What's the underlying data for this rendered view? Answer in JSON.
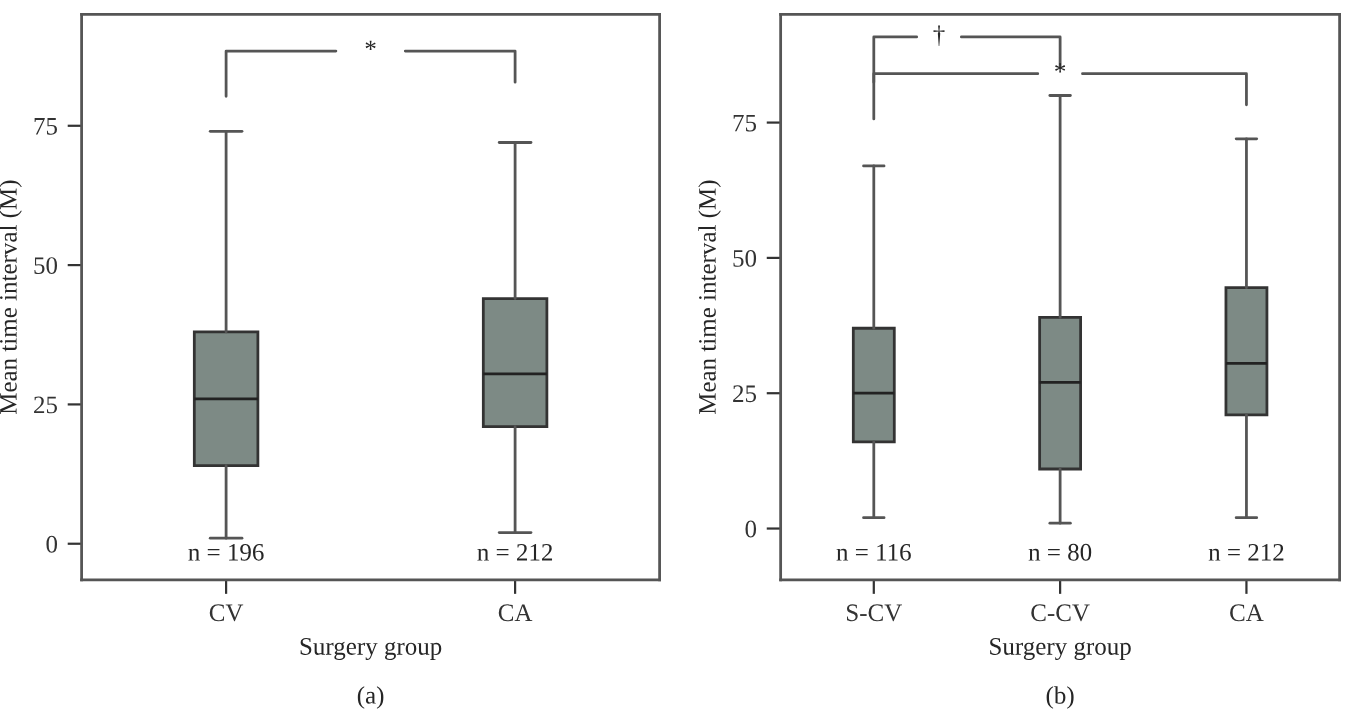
{
  "chart_data": [
    {
      "type": "box",
      "xlabel": "Surgery group",
      "ylabel": "Mean time interval (M)",
      "categories": [
        "CV",
        "CA"
      ],
      "color": "#7d8a85",
      "boxes": [
        {
          "low": 1,
          "q1": 14,
          "median": 26,
          "q3": 38,
          "high": 74
        },
        {
          "low": 2,
          "q1": 21,
          "median": 30.5,
          "q3": 44,
          "high": 72
        }
      ],
      "ylim": [
        -6.5,
        95
      ],
      "yticks": [
        0,
        25,
        50,
        75
      ],
      "grid": false,
      "annotations": [
        "n = 196",
        "n = 212",
        "*",
        "(a)"
      ]
    },
    {
      "type": "box",
      "xlabel": "Surgery group",
      "ylabel": "Mean time interval (M)",
      "categories": [
        "S-CV",
        "C-CV",
        "CA"
      ],
      "color": "#7d8a85",
      "boxes": [
        {
          "low": 2,
          "q1": 16,
          "median": 25,
          "q3": 37,
          "high": 67
        },
        {
          "low": 1,
          "q1": 11,
          "median": 27,
          "q3": 39,
          "high": 80
        },
        {
          "low": 2,
          "q1": 21,
          "median": 30.5,
          "q3": 44.5,
          "high": 72
        }
      ],
      "ylim": [
        -9.5,
        95
      ],
      "yticks": [
        0,
        25,
        50,
        75
      ],
      "grid": false,
      "annotations": [
        "n = 116",
        "n = 80",
        "n = 212",
        "†",
        "*",
        "(b)"
      ]
    }
  ]
}
